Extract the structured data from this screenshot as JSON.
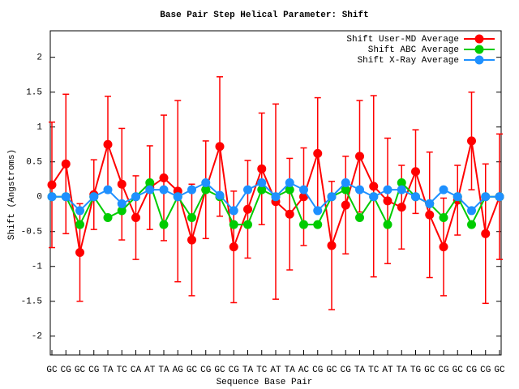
{
  "chart_data": {
    "type": "line",
    "title": "Base Pair Step Helical Parameter: Shift",
    "x_label": "Sequence Base Pair",
    "y_label": "Shift (Angstroms)",
    "categories": [
      "GC",
      "CG",
      "GC",
      "CG",
      "TA",
      "TC",
      "CA",
      "AT",
      "TA",
      "AG",
      "GC",
      "CG",
      "GC",
      "CG",
      "TA",
      "TC",
      "AT",
      "TA",
      "AC",
      "CG",
      "GC",
      "CG",
      "TA",
      "TC",
      "AT",
      "TA",
      "TG",
      "GC",
      "CG",
      "GC",
      "CG",
      "CG",
      "GC"
    ],
    "ylim": [
      -2.27,
      2.38
    ],
    "yticks": [
      -2,
      -1.5,
      -1,
      -0.5,
      0,
      0.5,
      1,
      1.5,
      2
    ],
    "legend": "top-right",
    "series": [
      {
        "name": "Shift User-MD Average",
        "color": "#ff0000",
        "values": [
          0.17,
          0.47,
          -0.8,
          0.03,
          0.75,
          0.18,
          -0.3,
          0.13,
          0.27,
          0.08,
          -0.62,
          0.1,
          0.72,
          -0.72,
          -0.18,
          0.4,
          -0.07,
          -0.25,
          0.0,
          0.62,
          -0.7,
          -0.12,
          0.58,
          0.15,
          -0.06,
          -0.15,
          0.36,
          -0.26,
          -0.72,
          -0.05,
          0.8,
          -0.53,
          0.0
        ],
        "errors": [
          0.9,
          1.0,
          0.7,
          0.5,
          0.69,
          0.8,
          0.6,
          0.6,
          0.9,
          1.3,
          0.8,
          0.7,
          1.0,
          0.8,
          0.7,
          0.8,
          1.4,
          0.8,
          0.7,
          0.8,
          0.92,
          0.7,
          0.8,
          1.3,
          0.9,
          0.6,
          0.6,
          0.9,
          0.7,
          0.5,
          0.7,
          1.0,
          0.9
        ]
      },
      {
        "name": "Shift ABC Average",
        "color": "#00cc00",
        "values": [
          0,
          0,
          -0.4,
          0,
          -0.3,
          -0.2,
          0,
          0.2,
          -0.4,
          0,
          -0.3,
          0.1,
          0,
          -0.4,
          -0.4,
          0.1,
          0,
          0.1,
          -0.4,
          -0.4,
          0,
          0.1,
          -0.3,
          0,
          -0.4,
          0.2,
          0,
          -0.1,
          -0.3,
          0,
          -0.4,
          0,
          0
        ]
      },
      {
        "name": "Shift X-Ray Average",
        "color": "#1e90ff",
        "values": [
          0,
          0,
          -0.2,
          0,
          0.1,
          -0.1,
          0,
          0.1,
          0.1,
          0,
          0.1,
          0.2,
          0.02,
          -0.2,
          0.1,
          0.2,
          0,
          0.2,
          0.1,
          -0.2,
          0,
          0.2,
          0.1,
          0,
          0.1,
          0.1,
          0,
          -0.1,
          0.1,
          0,
          -0.2,
          0,
          0
        ]
      }
    ]
  }
}
